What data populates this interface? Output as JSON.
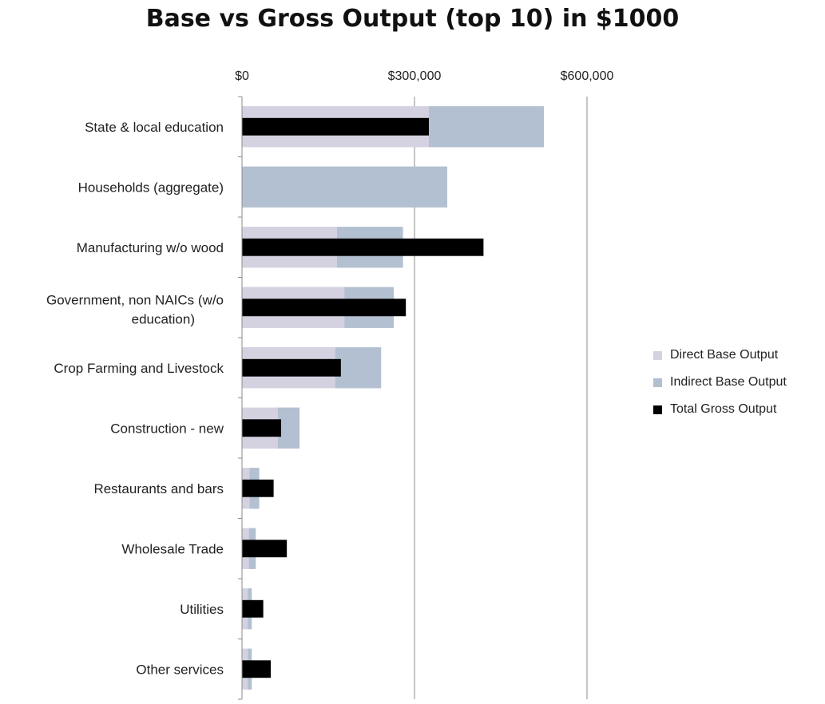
{
  "chart_data": {
    "type": "bar",
    "orientation": "horizontal",
    "title": "Base vs Gross Output (top 10) in $1000",
    "xlim": [
      0,
      700000
    ],
    "x_ticks": [
      {
        "value": 0,
        "label": "$0"
      },
      {
        "value": 300000,
        "label": "$300,000"
      },
      {
        "value": 600000,
        "label": "$600,000"
      }
    ],
    "gridlines": true,
    "legend_position": "right",
    "categories": [
      "State & local education",
      "Households (aggregate)",
      "Manufacturing w/o wood",
      "Government, non NAICs (w/o education)",
      "Crop Farming and Livestock",
      "Construction - new",
      "Restaurants and bars",
      "Wholesale Trade",
      "Utilities",
      "Other services"
    ],
    "series": [
      {
        "name": "Direct Base Output",
        "color": "#d4d1e1",
        "stacked": true,
        "values": [
          325000,
          0,
          165000,
          178000,
          162000,
          62000,
          13000,
          12000,
          10000,
          10000
        ]
      },
      {
        "name": "Indirect Base Output",
        "color": "#b3c0d1",
        "stacked": true,
        "values": [
          200000,
          357000,
          115000,
          86000,
          80000,
          38000,
          17000,
          12000,
          7000,
          7000
        ]
      },
      {
        "name": "Total Gross Output",
        "color": "#000000",
        "stacked": false,
        "values": [
          325000,
          0,
          420000,
          285000,
          172000,
          68000,
          55000,
          78000,
          37000,
          50000
        ]
      }
    ]
  }
}
